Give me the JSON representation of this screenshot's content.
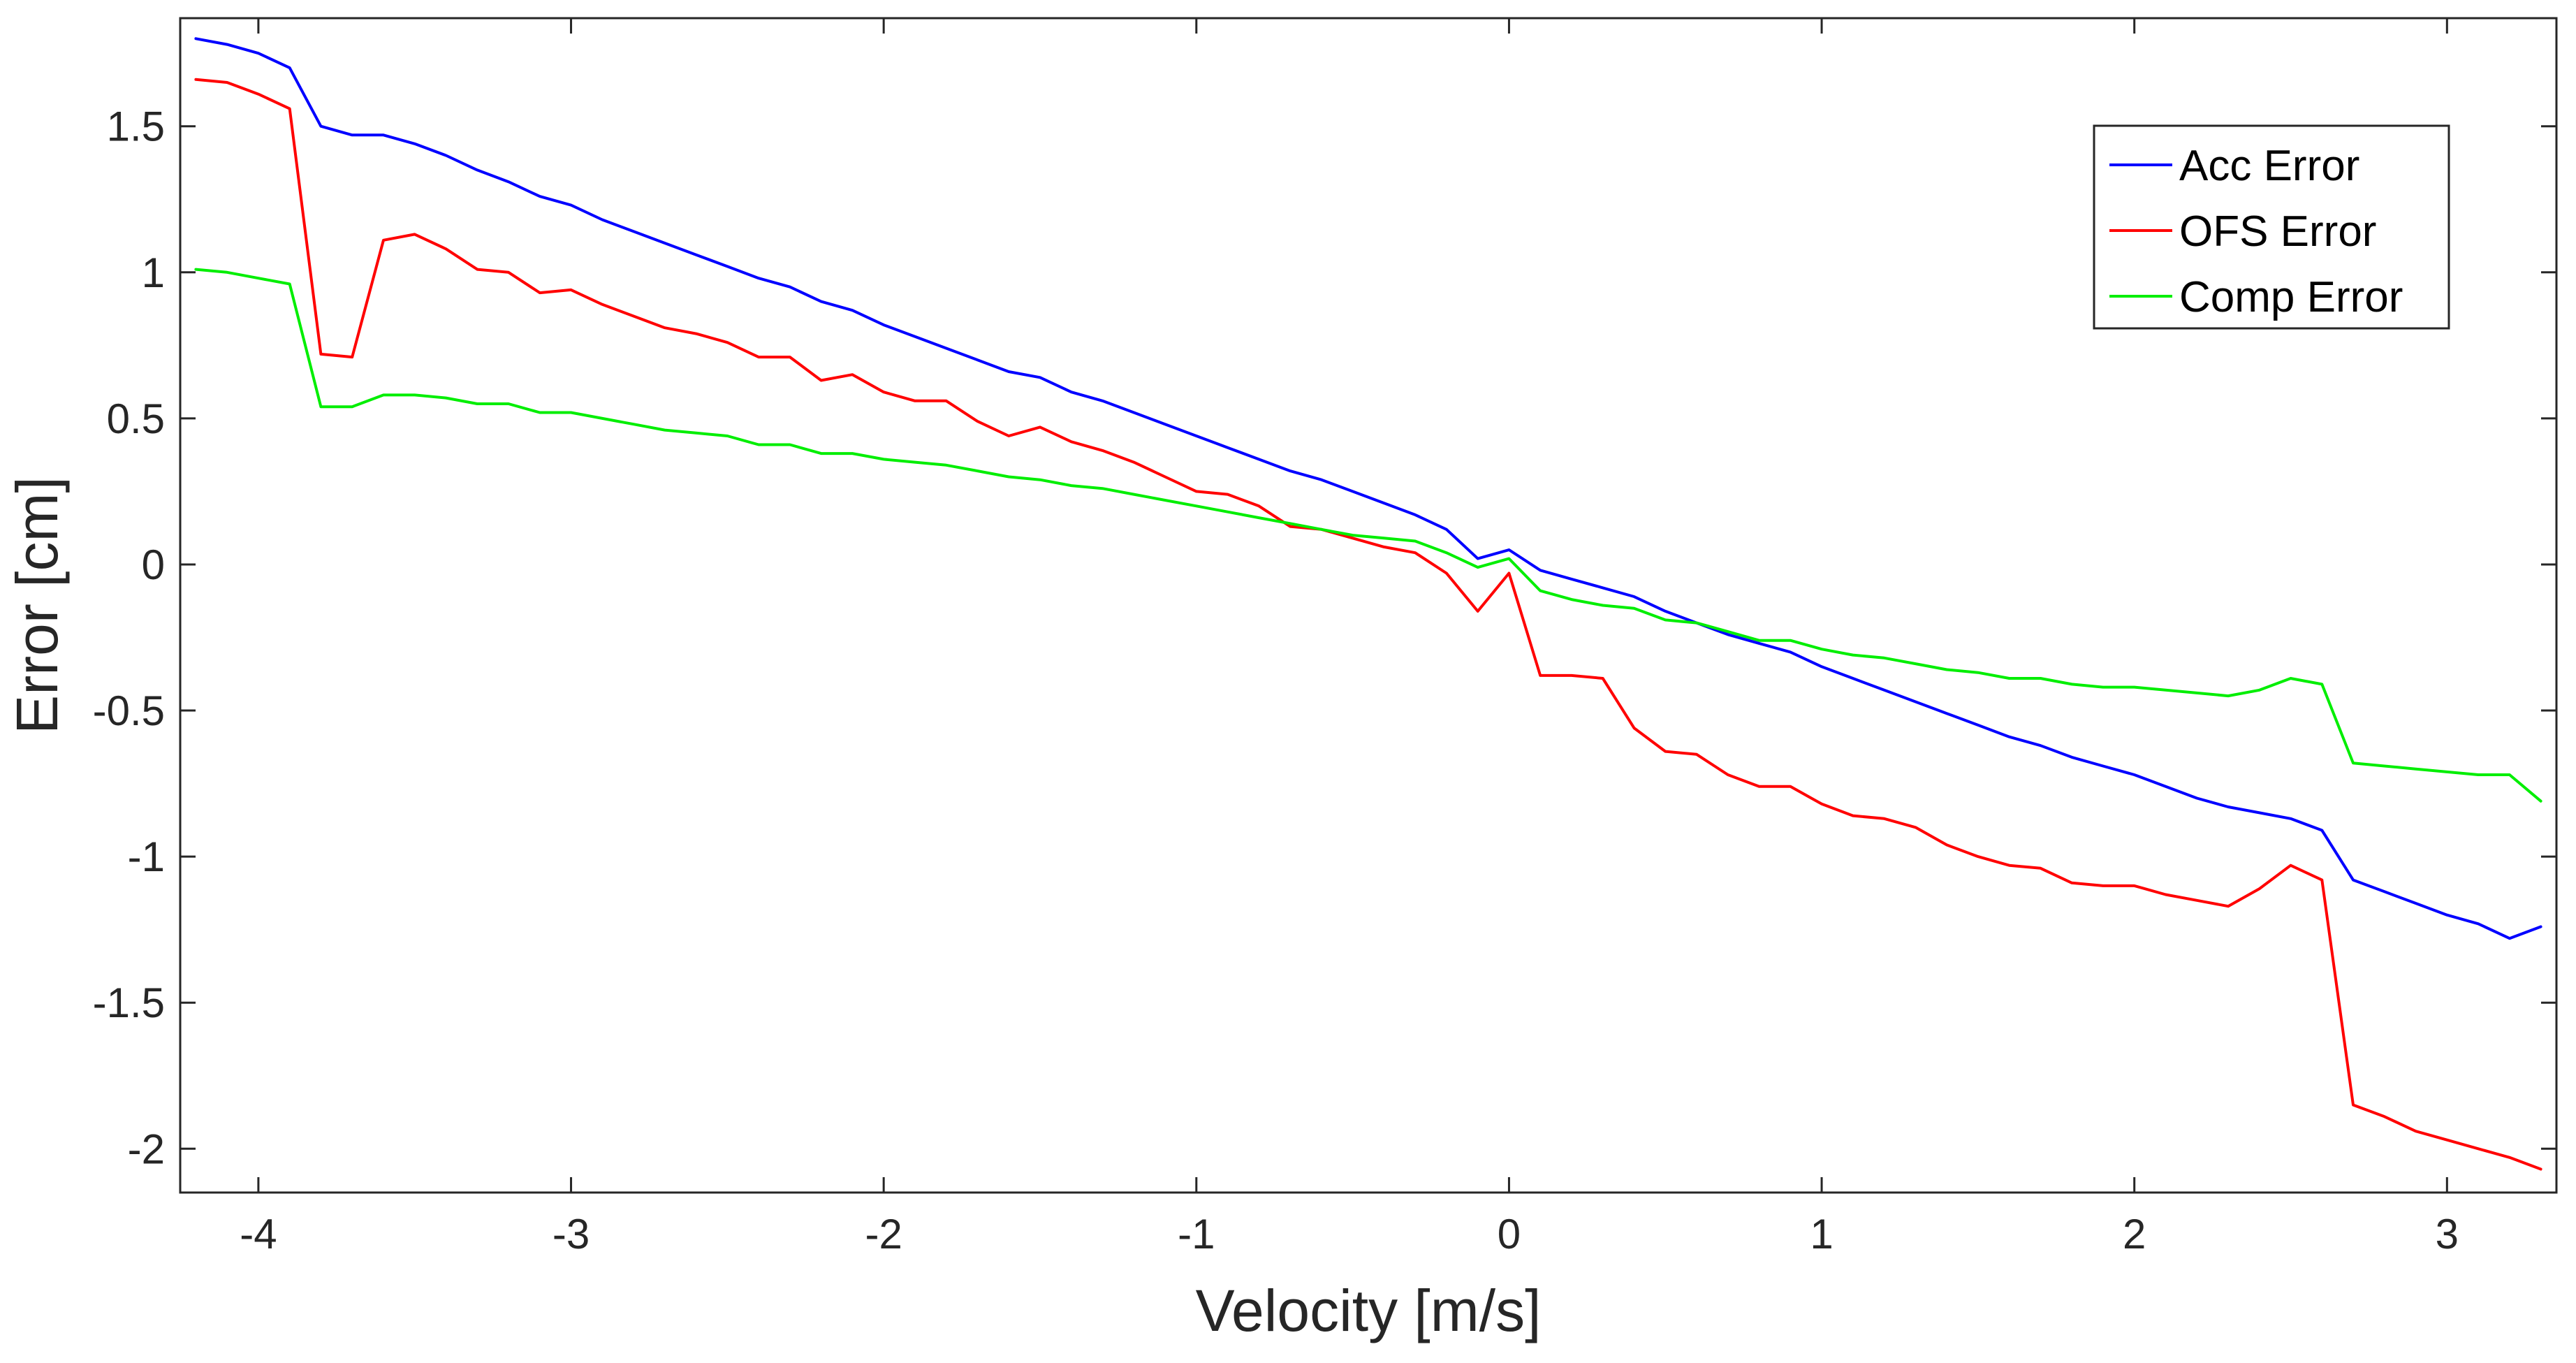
{
  "chart_data": {
    "type": "line",
    "title": "",
    "xlabel": "Velocity [m/s]",
    "ylabel": "Error [cm]",
    "xlim": [
      -4.25,
      3.35
    ],
    "ylim": [
      -2.15,
      1.87
    ],
    "grid": false,
    "legend_position": "top-right",
    "xticks": [
      -4,
      -3,
      -2,
      -1,
      0,
      1,
      2,
      3
    ],
    "yticks": [
      -2,
      -1.5,
      -1,
      -0.5,
      0,
      0.5,
      1,
      1.5
    ],
    "x": [
      -4.2,
      -4.1,
      -4.0,
      -3.9,
      -3.8,
      -3.7,
      -3.6,
      -3.5,
      -3.4,
      -3.3,
      -3.2,
      -3.1,
      -3.0,
      -2.9,
      -2.8,
      -2.7,
      -2.6,
      -2.5,
      -2.4,
      -2.3,
      -2.2,
      -2.1,
      -2.0,
      -1.9,
      -1.8,
      -1.7,
      -1.6,
      -1.5,
      -1.4,
      -1.3,
      -1.2,
      -1.1,
      -1.0,
      -0.9,
      -0.8,
      -0.7,
      -0.6,
      -0.5,
      -0.4,
      -0.3,
      -0.2,
      -0.1,
      0.0,
      0.1,
      0.2,
      0.3,
      0.4,
      0.5,
      0.6,
      0.7,
      0.8,
      0.9,
      1.0,
      1.1,
      1.2,
      1.3,
      1.4,
      1.5,
      1.6,
      1.7,
      1.8,
      1.9,
      2.0,
      2.1,
      2.2,
      2.3,
      2.4,
      2.5,
      2.6,
      2.7,
      2.8,
      2.9,
      3.0,
      3.1,
      3.2,
      3.3
    ],
    "series": [
      {
        "name": "Acc Error",
        "color": "#0000ff",
        "values": [
          1.8,
          1.78,
          1.75,
          1.7,
          1.5,
          1.47,
          1.47,
          1.44,
          1.4,
          1.35,
          1.31,
          1.26,
          1.23,
          1.18,
          1.14,
          1.1,
          1.06,
          1.02,
          0.98,
          0.95,
          0.9,
          0.87,
          0.82,
          0.78,
          0.74,
          0.7,
          0.66,
          0.64,
          0.59,
          0.56,
          0.52,
          0.48,
          0.44,
          0.4,
          0.36,
          0.32,
          0.29,
          0.25,
          0.21,
          0.17,
          0.12,
          0.02,
          0.05,
          -0.02,
          -0.05,
          -0.08,
          -0.11,
          -0.16,
          -0.2,
          -0.24,
          -0.27,
          -0.3,
          -0.35,
          -0.39,
          -0.43,
          -0.47,
          -0.51,
          -0.55,
          -0.59,
          -0.62,
          -0.66,
          -0.69,
          -0.72,
          -0.76,
          -0.8,
          -0.83,
          -0.85,
          -0.87,
          -0.91,
          -1.08,
          -1.12,
          -1.16,
          -1.2,
          -1.23,
          -1.28,
          -1.24
        ]
      },
      {
        "name": "OFS Error",
        "color": "#ff0000",
        "values": [
          1.66,
          1.65,
          1.61,
          1.56,
          0.72,
          0.71,
          1.11,
          1.13,
          1.08,
          1.01,
          1.0,
          0.93,
          0.94,
          0.89,
          0.85,
          0.81,
          0.79,
          0.76,
          0.71,
          0.71,
          0.63,
          0.65,
          0.59,
          0.56,
          0.56,
          0.49,
          0.44,
          0.47,
          0.42,
          0.39,
          0.35,
          0.3,
          0.25,
          0.24,
          0.2,
          0.13,
          0.12,
          0.09,
          0.06,
          0.04,
          -0.03,
          -0.16,
          -0.03,
          -0.38,
          -0.38,
          -0.39,
          -0.56,
          -0.64,
          -0.65,
          -0.72,
          -0.76,
          -0.76,
          -0.82,
          -0.86,
          -0.87,
          -0.9,
          -0.96,
          -1.0,
          -1.03,
          -1.04,
          -1.09,
          -1.1,
          -1.1,
          -1.13,
          -1.15,
          -1.17,
          -1.11,
          -1.03,
          -1.08,
          -1.85,
          -1.89,
          -1.94,
          -1.97,
          -2.0,
          -2.03,
          -2.07
        ]
      },
      {
        "name": "Comp Error",
        "color": "#00ee00",
        "values": [
          1.01,
          1.0,
          0.98,
          0.96,
          0.54,
          0.54,
          0.58,
          0.58,
          0.57,
          0.55,
          0.55,
          0.52,
          0.52,
          0.5,
          0.48,
          0.46,
          0.45,
          0.44,
          0.41,
          0.41,
          0.38,
          0.38,
          0.36,
          0.35,
          0.34,
          0.32,
          0.3,
          0.29,
          0.27,
          0.26,
          0.24,
          0.22,
          0.2,
          0.18,
          0.16,
          0.14,
          0.12,
          0.1,
          0.09,
          0.08,
          0.04,
          -0.01,
          0.02,
          -0.09,
          -0.12,
          -0.14,
          -0.15,
          -0.19,
          -0.2,
          -0.23,
          -0.26,
          -0.26,
          -0.29,
          -0.31,
          -0.32,
          -0.34,
          -0.36,
          -0.37,
          -0.39,
          -0.39,
          -0.41,
          -0.42,
          -0.42,
          -0.43,
          -0.44,
          -0.45,
          -0.43,
          -0.39,
          -0.41,
          -0.68,
          -0.69,
          -0.7,
          -0.71,
          -0.72,
          -0.72,
          -0.81
        ]
      }
    ]
  }
}
